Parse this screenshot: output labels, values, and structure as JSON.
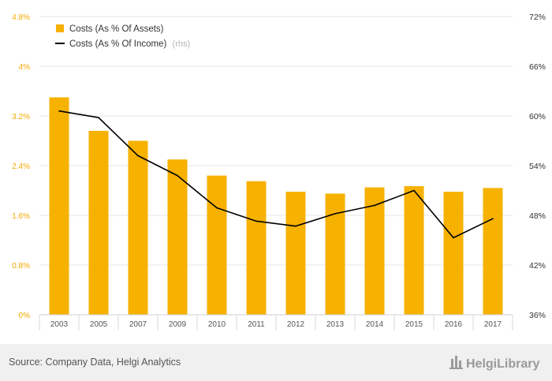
{
  "chart_data": {
    "type": "bar+line",
    "categories": [
      "2003",
      "2005",
      "2007",
      "2009",
      "2010",
      "2011",
      "2012",
      "2013",
      "2014",
      "2015",
      "2016",
      "2017"
    ],
    "series": [
      {
        "name": "Costs (As % Of Assets)",
        "type": "bar",
        "axis": "left",
        "color": "#f7b100",
        "values": [
          3.5,
          2.96,
          2.8,
          2.5,
          2.24,
          2.15,
          1.98,
          1.95,
          2.05,
          2.07,
          1.98,
          2.04
        ]
      },
      {
        "name": "Costs (As % Of Income)",
        "type": "line",
        "axis": "right",
        "color": "#000000",
        "values": [
          60.6,
          59.8,
          55.2,
          52.8,
          48.9,
          47.3,
          46.7,
          48.2,
          49.2,
          51.0,
          45.3,
          47.6
        ]
      }
    ],
    "y_left": {
      "min": 0,
      "max": 4.8,
      "ticks": [
        0,
        0.8,
        1.6,
        2.4,
        3.2,
        4,
        4.8
      ],
      "tick_labels": [
        "0%",
        "0.8%",
        "1.6%",
        "2.4%",
        "3.2%",
        "4%",
        "4.8%"
      ]
    },
    "y_right": {
      "min": 36,
      "max": 72,
      "ticks": [
        36,
        42,
        48,
        54,
        60,
        66,
        72
      ],
      "tick_labels": [
        "36%",
        "42%",
        "48%",
        "54%",
        "60%",
        "66%",
        "72%"
      ]
    },
    "legend": {
      "position": "top-left",
      "items": [
        {
          "label": "Costs (As % Of Assets)",
          "suffix": ""
        },
        {
          "label": "Costs (As % Of Income)",
          "suffix": "(rhs)"
        }
      ]
    },
    "grid": true
  },
  "footer": {
    "source": "Source: Company Data, Helgi Analytics",
    "logo": "HelgiLibrary"
  },
  "colors": {
    "bar": "#f7b100",
    "line": "#000000",
    "left_axis_text": "#f2a900",
    "grid": "#e6e6e6",
    "footer_bg": "#f0f0f0"
  }
}
